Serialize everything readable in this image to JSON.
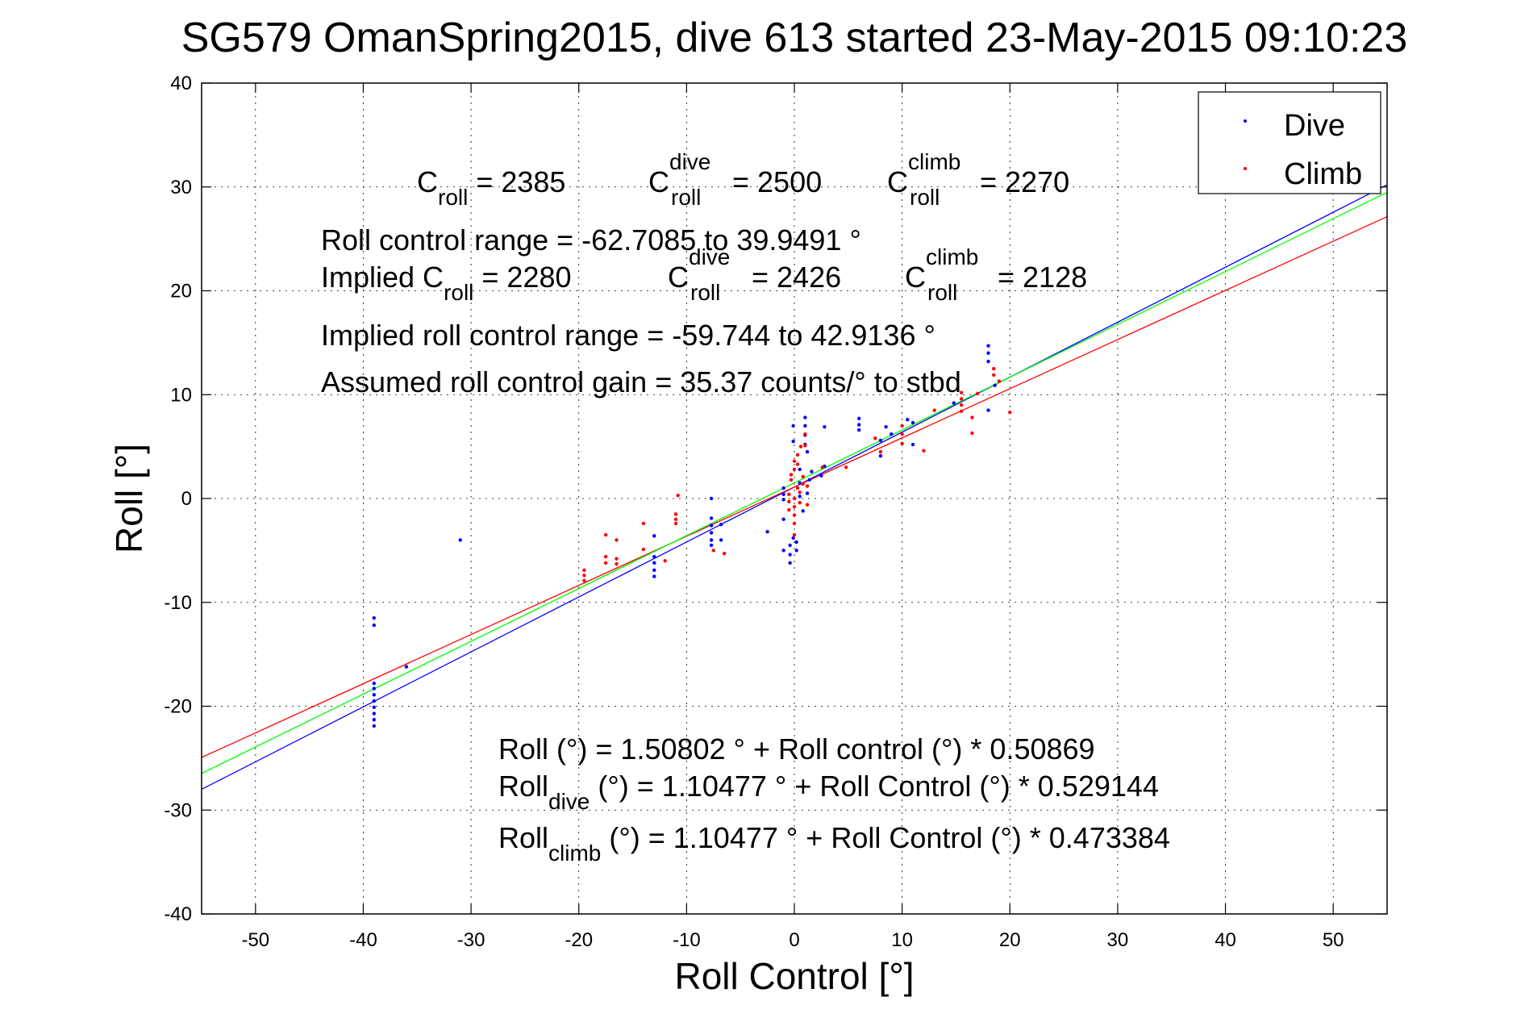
{
  "chart_data": {
    "type": "scatter",
    "title": "SG579 OmanSpring2015, dive 613 started 23-May-2015 09:10:23",
    "xlabel": "Roll Control [°]",
    "ylabel": "Roll [°]",
    "xlim": [
      -55,
      55
    ],
    "ylim": [
      -40,
      40
    ],
    "xticks": [
      -50,
      -40,
      -30,
      -20,
      -10,
      0,
      10,
      20,
      30,
      40,
      50
    ],
    "yticks": [
      -40,
      -30,
      -20,
      -10,
      0,
      10,
      20,
      30,
      40
    ],
    "grid": true,
    "legend_position": "top-right",
    "colors": {
      "dive": "#0000ff",
      "climb": "#ff0000",
      "fit_all": "#00ff00"
    },
    "series": [
      {
        "name": "Dive",
        "color": "#0000ff",
        "points": [
          [
            -39,
            -11.5
          ],
          [
            -39,
            -12.2
          ],
          [
            -39,
            -17.8
          ],
          [
            -39,
            -18.3
          ],
          [
            -39,
            -18.9
          ],
          [
            -39,
            -19.5
          ],
          [
            -39,
            -20.1
          ],
          [
            -39,
            -20.7
          ],
          [
            -39,
            -21.3
          ],
          [
            -39,
            -21.9
          ],
          [
            -36,
            -16.2
          ],
          [
            -31,
            -4.0
          ],
          [
            -13,
            -5.6
          ],
          [
            -13,
            -6.2
          ],
          [
            -13,
            -6.9
          ],
          [
            -13,
            -7.5
          ],
          [
            -13,
            -3.6
          ],
          [
            -7.7,
            0.0
          ],
          [
            -7.7,
            -1.9
          ],
          [
            -7.7,
            -2.6
          ],
          [
            -7.7,
            -3.3
          ],
          [
            -7.7,
            -4.0
          ],
          [
            -7.7,
            -4.5
          ],
          [
            -6.8,
            -2.5
          ],
          [
            -6.8,
            -4.0
          ],
          [
            -2.5,
            -3.2
          ],
          [
            -1,
            1.0
          ],
          [
            -1,
            0.4
          ],
          [
            -1,
            -0.1
          ],
          [
            -1,
            -2.0
          ],
          [
            -1,
            -5.0
          ],
          [
            -0.4,
            -4.5
          ],
          [
            -0.4,
            -5.4
          ],
          [
            -0.4,
            -6.2
          ],
          [
            -0.1,
            -3.8
          ],
          [
            -0.1,
            5.5
          ],
          [
            -0.1,
            7.0
          ],
          [
            0.2,
            -4.2
          ],
          [
            0.2,
            -5.0
          ],
          [
            0.5,
            2.8
          ],
          [
            0.5,
            1.5
          ],
          [
            0.5,
            0.2
          ],
          [
            0.8,
            -1.2
          ],
          [
            1.0,
            5.2
          ],
          [
            1.0,
            6.1
          ],
          [
            1.0,
            7.0
          ],
          [
            1.0,
            7.8
          ],
          [
            1.2,
            4.5
          ],
          [
            1.2,
            0.5
          ],
          [
            1.4,
            1.8
          ],
          [
            1.6,
            2.6
          ],
          [
            2.5,
            2.2
          ],
          [
            2.8,
            3.1
          ],
          [
            2.8,
            6.9
          ],
          [
            6.0,
            6.6
          ],
          [
            6.0,
            7.1
          ],
          [
            6.0,
            7.7
          ],
          [
            8.0,
            5.6
          ],
          [
            8.0,
            4.1
          ],
          [
            8.5,
            6.9
          ],
          [
            9.0,
            6.2
          ],
          [
            10.5,
            7.6
          ],
          [
            11.0,
            7.3
          ],
          [
            11.0,
            5.2
          ],
          [
            14.8,
            9.2
          ],
          [
            18.0,
            13.2
          ],
          [
            18.0,
            14.0
          ],
          [
            18.0,
            14.7
          ],
          [
            18.0,
            8.5
          ],
          [
            18.6,
            10.9
          ]
        ]
      },
      {
        "name": "Climb",
        "color": "#ff0000",
        "points": [
          [
            -19.5,
            -7.9
          ],
          [
            -19.5,
            -7.4
          ],
          [
            -19.5,
            -6.9
          ],
          [
            -17.5,
            -6.2
          ],
          [
            -17.5,
            -5.6
          ],
          [
            -17.5,
            -3.5
          ],
          [
            -16.5,
            -6.3
          ],
          [
            -16.5,
            -5.8
          ],
          [
            -16.5,
            -4.0
          ],
          [
            -14,
            -4.9
          ],
          [
            -14,
            -2.4
          ],
          [
            -12,
            -6.0
          ],
          [
            -11,
            -1.5
          ],
          [
            -11,
            -2.0
          ],
          [
            -11,
            -2.4
          ],
          [
            -10.8,
            0.3
          ],
          [
            -7.5,
            -5.0
          ],
          [
            -6.5,
            -5.3
          ],
          [
            -0.5,
            -1.1
          ],
          [
            -0.5,
            -0.3
          ],
          [
            -0.5,
            0.4
          ],
          [
            -0.3,
            1.8
          ],
          [
            -0.3,
            2.3
          ],
          [
            0.0,
            0.0
          ],
          [
            0.0,
            -0.8
          ],
          [
            0.0,
            -1.6
          ],
          [
            0.0,
            -2.4
          ],
          [
            0.0,
            -3.5
          ],
          [
            0.0,
            2.8
          ],
          [
            0.0,
            3.6
          ],
          [
            0.3,
            1.0
          ],
          [
            0.3,
            3.3
          ],
          [
            0.3,
            4.2
          ],
          [
            0.5,
            0.6
          ],
          [
            0.5,
            -0.4
          ],
          [
            0.6,
            5.0
          ],
          [
            0.8,
            2.1
          ],
          [
            0.8,
            1.4
          ],
          [
            1.0,
            6.2
          ],
          [
            1.0,
            5.1
          ],
          [
            1.2,
            1.2
          ],
          [
            1.2,
            -0.6
          ],
          [
            2.6,
            3.0
          ],
          [
            4.8,
            3.0
          ],
          [
            7.5,
            5.8
          ],
          [
            8.0,
            4.5
          ],
          [
            10.0,
            7.0
          ],
          [
            10.0,
            6.2
          ],
          [
            10.0,
            5.3
          ],
          [
            12.0,
            4.6
          ],
          [
            13.0,
            8.5
          ],
          [
            15.5,
            10.2
          ],
          [
            15.5,
            9.6
          ],
          [
            15.5,
            9.0
          ],
          [
            15.5,
            8.4
          ],
          [
            16.5,
            7.8
          ],
          [
            16.5,
            6.3
          ],
          [
            17.0,
            10.1
          ],
          [
            18.5,
            12.5
          ],
          [
            18.5,
            11.9
          ],
          [
            19.0,
            11.3
          ],
          [
            20.0,
            8.3
          ]
        ]
      }
    ],
    "fit_lines": [
      {
        "color": "#0000ff",
        "intercept": 1.10477,
        "slope": 0.529144
      },
      {
        "color": "#ff0000",
        "intercept": 1.10477,
        "slope": 0.473384
      },
      {
        "color": "#00ff00",
        "intercept": 1.50802,
        "slope": 0.50869
      }
    ],
    "annotations": {
      "c_roll": {
        "base": "C",
        "sub": "roll",
        "value": " = 2385"
      },
      "c_roll_dive": {
        "base": "C",
        "sup": "dive",
        "sub": "roll",
        "value": " = 2500"
      },
      "c_roll_climb": {
        "base": "C",
        "sup": "climb",
        "sub": "roll",
        "value": " = 2270"
      },
      "roll_control_range": "Roll control range = -62.7085 to 39.9491 °",
      "implied_prefix": "Implied C",
      "implied_sub": "roll",
      "implied_value": " = 2280",
      "implied_dive": {
        "base": "C",
        "sup": "dive",
        "sub": "roll",
        "value": " = 2426"
      },
      "implied_climb": {
        "base": "C",
        "sup": "climb",
        "sub": "roll",
        "value": " = 2128"
      },
      "implied_range": "Implied roll control range = -59.744 to 42.9136 °",
      "gain": "Assumed roll control gain = 35.37 counts/° to stbd",
      "fit_all": "Roll (°) = 1.50802 ° + Roll control (°) * 0.50869",
      "fit_dive": {
        "base": "Roll",
        "sub": "dive",
        "rest": " (°) = 1.10477 ° + Roll Control (°) * 0.529144"
      },
      "fit_climb": {
        "base": "Roll",
        "sub": "climb",
        "rest": " (°) = 1.10477 ° + Roll Control (°) * 0.473384"
      }
    }
  }
}
